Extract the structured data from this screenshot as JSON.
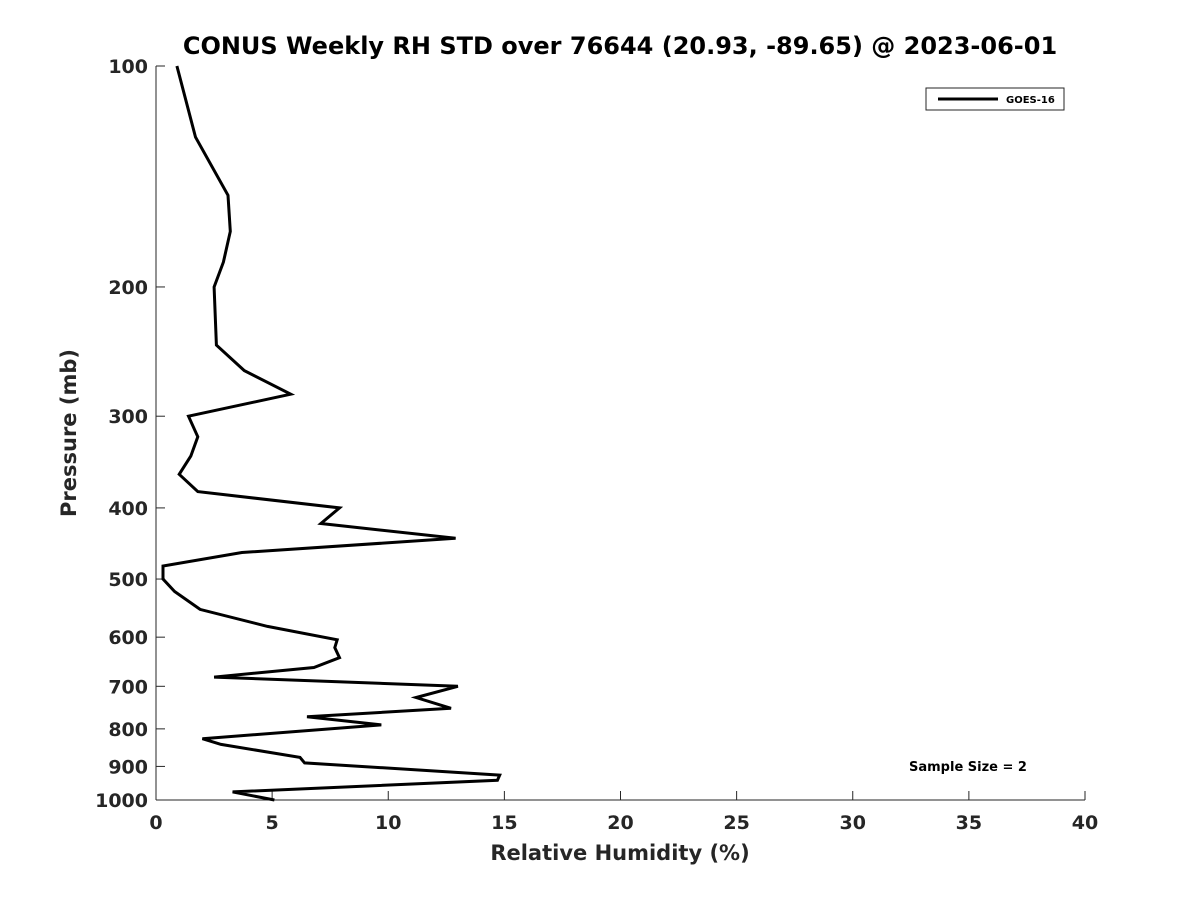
{
  "chart_data": {
    "type": "line",
    "title": "CONUS Weekly RH STD over 76644 (20.93, -89.65) @ 2023-06-01",
    "xlabel": "Relative Humidity (%)",
    "ylabel": "Pressure (mb)",
    "xlim": [
      0,
      40
    ],
    "ylim": [
      100,
      1000
    ],
    "yscale": "log",
    "ydirection": "reverse",
    "xticks": [
      0,
      5,
      10,
      15,
      20,
      25,
      30,
      35,
      40
    ],
    "yticks": [
      100,
      200,
      300,
      400,
      500,
      600,
      700,
      800,
      900,
      1000
    ],
    "grid": false,
    "legend_position": "top-right",
    "line_color": "#000000",
    "annotation": "Sample Size = 2",
    "series": [
      {
        "name": "GOES-16",
        "x": [
          0.9,
          1.7,
          3.1,
          3.2,
          2.9,
          2.5,
          2.6,
          3.8,
          5.8,
          1.4,
          1.8,
          1.5,
          1.0,
          1.8,
          7.9,
          7.1,
          12.9,
          3.7,
          0.3,
          0.3,
          0.8,
          1.9,
          4.8,
          7.8,
          7.7,
          7.9,
          6.8,
          2.5,
          13.0,
          11.2,
          12.7,
          6.5,
          9.7,
          2.0,
          2.8,
          6.2,
          6.4,
          14.8,
          14.7,
          3.3,
          5.1
        ],
        "y": [
          100,
          125,
          150,
          168,
          185,
          200,
          240,
          260,
          280,
          300,
          320,
          340,
          360,
          380,
          400,
          420,
          440,
          460,
          480,
          500,
          520,
          550,
          580,
          605,
          620,
          640,
          660,
          680,
          700,
          725,
          750,
          770,
          790,
          825,
          840,
          875,
          890,
          925,
          940,
          975,
          1000
        ]
      }
    ]
  }
}
